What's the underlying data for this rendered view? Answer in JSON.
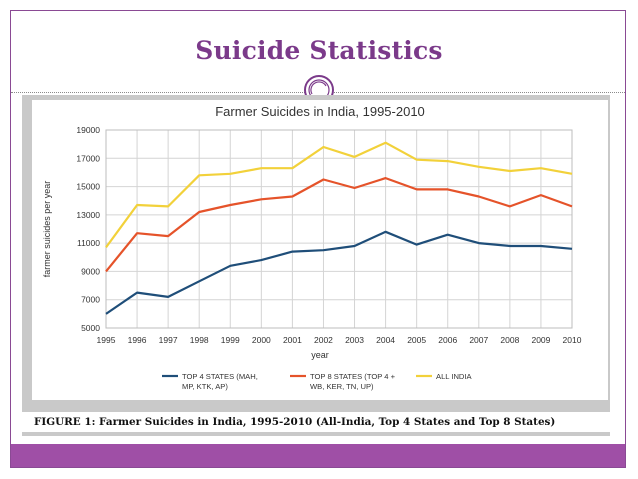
{
  "slide": {
    "title": "Suicide Statistics",
    "caption": "FIGURE 1: Farmer Suicides in India, 1995-2010 (All-India, Top 4 States and Top 8 States)"
  },
  "colors": {
    "accent": "#7b3a8a",
    "footer": "#9f4fa6",
    "series_top4": "#1f4e79",
    "series_top8": "#e5532a",
    "series_all": "#f2d13a"
  },
  "chart_data": {
    "type": "line",
    "title": "Farmer Suicides in India, 1995-2010",
    "xlabel": "year",
    "ylabel": "farmer suicides per year",
    "x": [
      "1995",
      "1996",
      "1997",
      "1998",
      "1999",
      "2000",
      "2001",
      "2002",
      "2003",
      "2004",
      "2005",
      "2006",
      "2007",
      "2008",
      "2009",
      "2010"
    ],
    "ylim": [
      5000,
      19000
    ],
    "yticks": [
      "5000",
      "7000",
      "9000",
      "11000",
      "13000",
      "15000",
      "17000",
      "19000"
    ],
    "grid": true,
    "legend_position": "bottom",
    "series": [
      {
        "name": "TOP 4 STATES (MAH, MP, KTK, AP)",
        "legend_lines": [
          "TOP 4 STATES (MAH,",
          "MP, KTK, AP)"
        ],
        "color": "#1f4e79",
        "values": [
          6000,
          7500,
          7200,
          8300,
          9400,
          9800,
          10400,
          10500,
          10800,
          11800,
          10900,
          11600,
          11000,
          10800,
          10800,
          10600
        ]
      },
      {
        "name": "TOP 8 STATES (TOP 4 + WB, KER, TN, UP)",
        "legend_lines": [
          "TOP 8 STATES (TOP 4 +",
          "WB, KER, TN, UP)"
        ],
        "color": "#e5532a",
        "values": [
          9000,
          11700,
          11500,
          13200,
          13700,
          14100,
          14300,
          15500,
          14900,
          15600,
          14800,
          14800,
          14300,
          13600,
          14400,
          13600
        ]
      },
      {
        "name": "ALL INDIA",
        "legend_lines": [
          "ALL INDIA"
        ],
        "color": "#f2d13a",
        "values": [
          10700,
          13700,
          13600,
          15800,
          15900,
          16300,
          16300,
          17800,
          17100,
          18100,
          16900,
          16800,
          16400,
          16100,
          16300,
          15900
        ]
      }
    ]
  }
}
